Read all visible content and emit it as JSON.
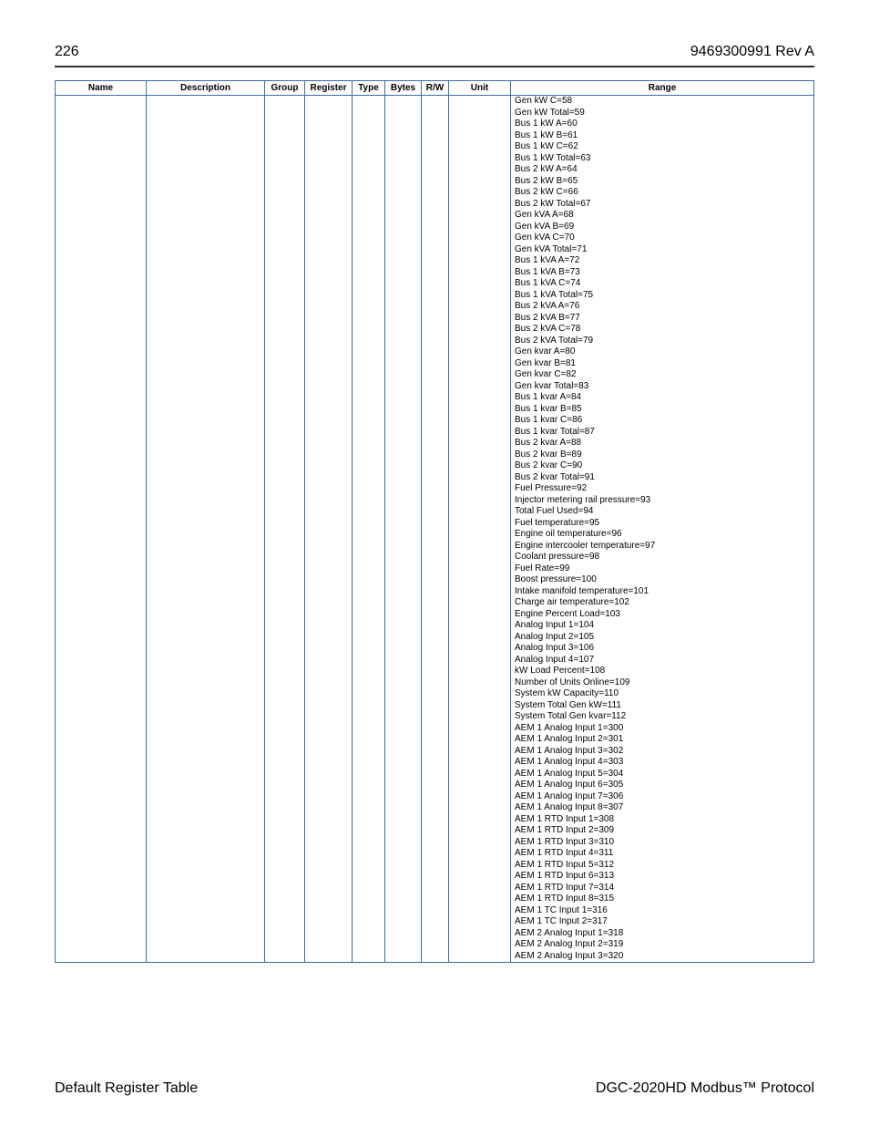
{
  "header": {
    "page_number": "226",
    "doc_id": "9469300991 Rev A"
  },
  "table": {
    "columns": [
      "Name",
      "Description",
      "Group",
      "Register",
      "Type",
      "Bytes",
      "R/W",
      "Unit",
      "Range"
    ],
    "row": {
      "name": "",
      "description": "",
      "group": "",
      "register": "",
      "type": "",
      "bytes": "",
      "rw": "",
      "unit": "",
      "range_lines": [
        "Gen kW C=58",
        "Gen kW Total=59",
        "Bus 1 kW A=60",
        "Bus 1 kW B=61",
        "Bus 1 kW C=62",
        "Bus 1 kW Total=63",
        "Bus 2 kW A=64",
        "Bus 2 kW B=65",
        "Bus 2 kW C=66",
        "Bus 2 kW Total=67",
        "Gen kVA A=68",
        "Gen kVA B=69",
        "Gen kVA C=70",
        "Gen kVA Total=71",
        "Bus 1 kVA A=72",
        "Bus 1 kVA B=73",
        "Bus 1 kVA C=74",
        "Bus 1 kVA Total=75",
        "Bus 2 kVA A=76",
        "Bus 2 kVA B=77",
        "Bus 2 kVA C=78",
        "Bus 2 kVA Total=79",
        "Gen kvar A=80",
        "Gen kvar B=81",
        "Gen kvar C=82",
        "Gen kvar Total=83",
        "Bus 1 kvar A=84",
        "Bus 1 kvar B=85",
        "Bus 1 kvar C=86",
        "Bus 1 kvar Total=87",
        "Bus 2 kvar A=88",
        "Bus 2 kvar B=89",
        "Bus 2 kvar C=90",
        "Bus 2 kvar Total=91",
        "Fuel Pressure=92",
        "Injector metering rail pressure=93",
        "Total Fuel Used=94",
        "Fuel temperature=95",
        "Engine oil temperature=96",
        "Engine intercooler temperature=97",
        "Coolant pressure=98",
        "Fuel Rate=99",
        "Boost pressure=100",
        "Intake manifold temperature=101",
        "Charge air temperature=102",
        "Engine Percent Load=103",
        "Analog Input 1=104",
        "Analog Input 2=105",
        "Analog Input 3=106",
        "Analog Input 4=107",
        "kW Load Percent=108",
        "Number of Units Online=109",
        "System kW Capacity=110",
        "System Total Gen kW=111",
        "System Total Gen kvar=112",
        "AEM 1 Analog Input 1=300",
        "AEM 1 Analog Input 2=301",
        "AEM 1 Analog Input 3=302",
        "AEM 1 Analog Input 4=303",
        "AEM 1 Analog Input 5=304",
        "AEM 1 Analog Input 6=305",
        "AEM 1 Analog Input 7=306",
        "AEM 1 Analog Input 8=307",
        "AEM 1 RTD Input 1=308",
        "AEM 1 RTD Input 2=309",
        "AEM 1 RTD Input 3=310",
        "AEM 1 RTD Input 4=311",
        "AEM 1 RTD Input 5=312",
        "AEM 1 RTD Input 6=313",
        "AEM 1 RTD Input 7=314",
        "AEM 1 RTD Input 8=315",
        "AEM 1 TC Input 1=316",
        "AEM 1 TC Input 2=317",
        "AEM 2 Analog Input 1=318",
        "AEM 2 Analog Input 2=319",
        "AEM 2 Analog Input 3=320"
      ]
    }
  },
  "footer": {
    "left": "Default Register Table",
    "right": "DGC-2020HD Modbus™ Protocol"
  },
  "colors": {
    "table_border": "#3a6ea5",
    "text": "#000000",
    "background": "#ffffff"
  }
}
